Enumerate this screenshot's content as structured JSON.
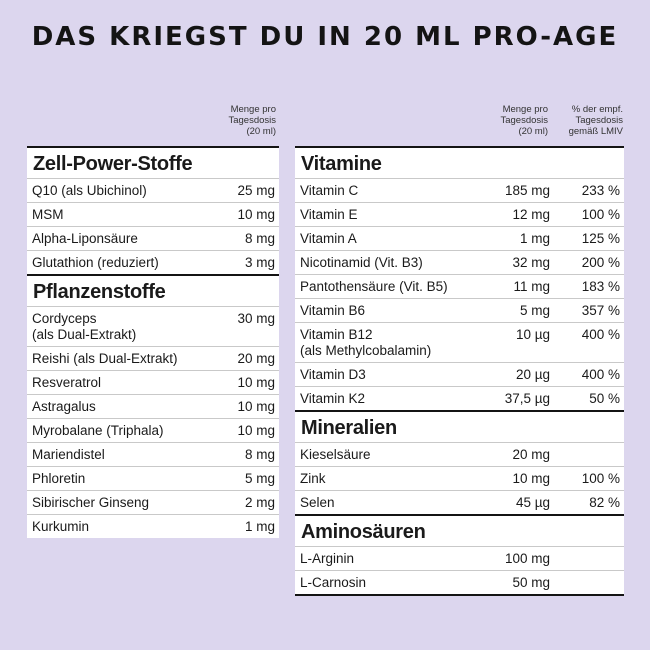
{
  "title": "DAS KRIEGST DU IN 20 ML PRO-AGE",
  "left_header": "Menge pro\nTagesdosis\n(20 ml)",
  "right_header_amount": "Menge pro\nTagesdosis\n(20 ml)",
  "right_header_percent": "% der empf.\nTagesdosis\ngemäß LMIV",
  "left_sections": [
    {
      "title": "Zell-Power-Stoffe",
      "rows": [
        {
          "name": "Q10 (als Ubichinol)",
          "amount": "25 mg"
        },
        {
          "name": "MSM",
          "amount": "10 mg"
        },
        {
          "name": "Alpha-Liponsäure",
          "amount": "8 mg"
        },
        {
          "name": "Glutathion (reduziert)",
          "amount": "3 mg"
        }
      ]
    },
    {
      "title": "Pflanzenstoffe",
      "rows": [
        {
          "name": "Cordyceps\n(als Dual-Extrakt)",
          "amount": "30 mg"
        },
        {
          "name": "Reishi (als Dual-Extrakt)",
          "amount": "20 mg"
        },
        {
          "name": "Resveratrol",
          "amount": "10 mg"
        },
        {
          "name": "Astragalus",
          "amount": "10 mg"
        },
        {
          "name": "Myrobalane (Triphala)",
          "amount": "10 mg"
        },
        {
          "name": "Mariendistel",
          "amount": "8 mg"
        },
        {
          "name": "Phloretin",
          "amount": "5 mg"
        },
        {
          "name": "Sibirischer Ginseng",
          "amount": "2 mg"
        },
        {
          "name": "Kurkumin",
          "amount": "1 mg"
        }
      ]
    }
  ],
  "right_sections": [
    {
      "title": "Vitamine",
      "rows": [
        {
          "name": "Vitamin C",
          "amount": "185 mg",
          "percent": "233 %"
        },
        {
          "name": "Vitamin E",
          "amount": "12 mg",
          "percent": "100 %"
        },
        {
          "name": "Vitamin A",
          "amount": "1 mg",
          "percent": "125 %"
        },
        {
          "name": "Nicotinamid (Vit. B3)",
          "amount": "32 mg",
          "percent": "200 %"
        },
        {
          "name": "Pantothensäure (Vit. B5)",
          "amount": "11 mg",
          "percent": "183 %"
        },
        {
          "name": "Vitamin B6",
          "amount": "5 mg",
          "percent": "357 %"
        },
        {
          "name": "Vitamin B12\n(als Methylcobalamin)",
          "amount": "10 µg",
          "percent": "400 %"
        },
        {
          "name": "Vitamin D3",
          "amount": "20 µg",
          "percent": "400 %"
        },
        {
          "name": "Vitamin K2",
          "amount": "37,5 µg",
          "percent": "50 %"
        }
      ]
    },
    {
      "title": "Mineralien",
      "rows": [
        {
          "name": "Kieselsäure",
          "amount": "20 mg",
          "percent": ""
        },
        {
          "name": "Zink",
          "amount": "10 mg",
          "percent": "100 %"
        },
        {
          "name": "Selen",
          "amount": "45 µg",
          "percent": "82 %"
        }
      ]
    },
    {
      "title": "Aminosäuren",
      "rows": [
        {
          "name": "L-Arginin",
          "amount": "100 mg",
          "percent": ""
        },
        {
          "name": "L-Carnosin",
          "amount": "50 mg",
          "percent": ""
        }
      ]
    }
  ]
}
